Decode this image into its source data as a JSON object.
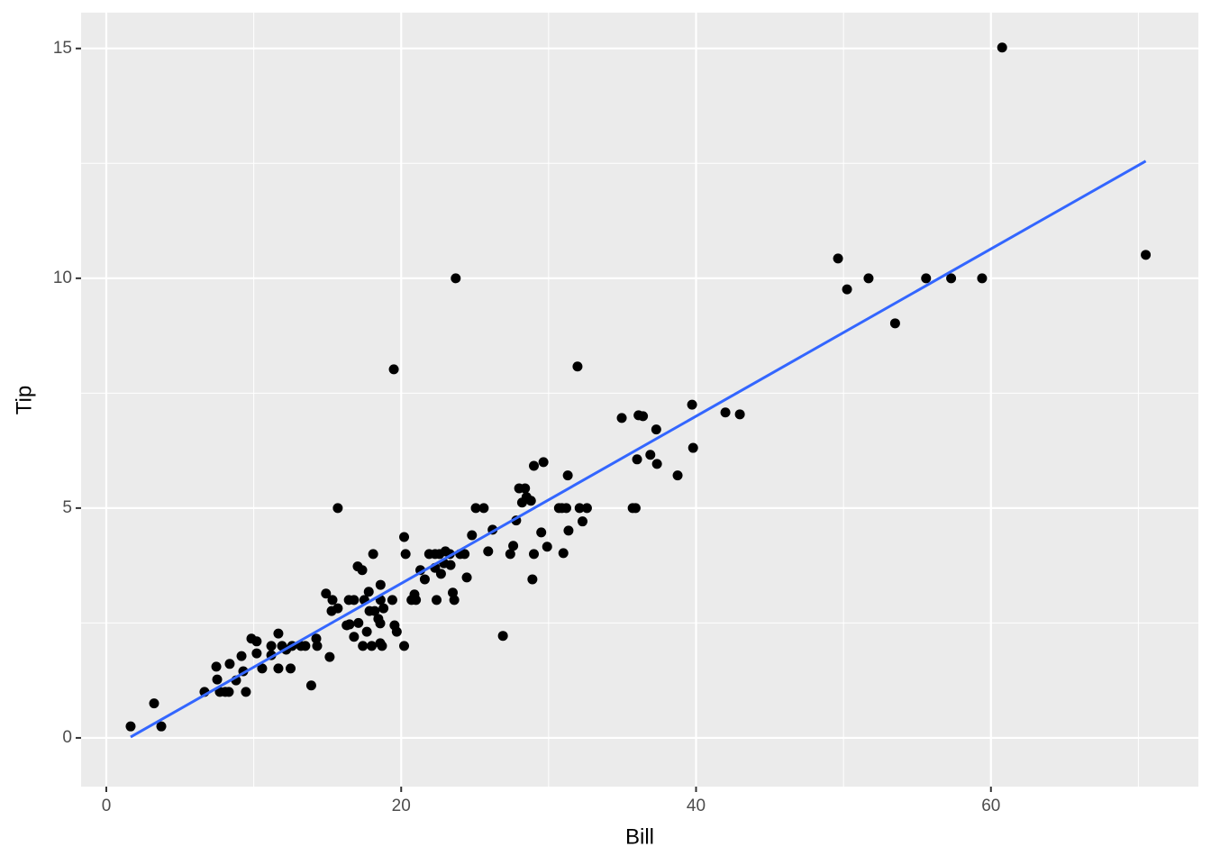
{
  "chart_data": {
    "type": "scatter",
    "x_label": "Bill",
    "y_label": "Tip",
    "x": [
      1.65,
      3.24,
      3.73,
      6.66,
      7.46,
      7.52,
      7.7,
      8.07,
      8.37,
      8.31,
      8.8,
      9.17,
      9.29,
      9.47,
      9.84,
      10.2,
      10.2,
      10.57,
      11.19,
      11.19,
      11.67,
      11.67,
      11.92,
      12.2,
      12.5,
      12.6,
      13.2,
      13.5,
      13.9,
      14.24,
      14.3,
      14.9,
      15.15,
      15.28,
      15.34,
      15.7,
      15.7,
      16.3,
      16.45,
      16.5,
      16.8,
      16.8,
      17.05,
      17.1,
      17.36,
      17.4,
      17.5,
      17.67,
      17.8,
      17.85,
      18.0,
      18.1,
      18.2,
      18.45,
      18.58,
      18.6,
      18.6,
      18.7,
      18.58,
      18.8,
      19.4,
      19.5,
      19.55,
      19.7,
      20.2,
      20.2,
      20.3,
      20.7,
      20.9,
      21.0,
      21.3,
      21.6,
      21.9,
      22.3,
      22.3,
      22.4,
      22.6,
      22.7,
      22.9,
      23.0,
      23.3,
      23.35,
      23.5,
      23.6,
      23.7,
      24.0,
      24.3,
      24.45,
      24.8,
      25.06,
      25.6,
      25.9,
      26.2,
      26.9,
      27.4,
      27.6,
      27.8,
      28.0,
      28.2,
      28.4,
      28.5,
      28.8,
      28.9,
      29.0,
      29.0,
      29.5,
      29.65,
      29.9,
      30.7,
      30.9,
      31.0,
      31.2,
      31.3,
      31.35,
      31.96,
      32.1,
      32.3,
      32.6,
      34.96,
      35.7,
      35.9,
      36.0,
      36.1,
      36.4,
      36.9,
      37.3,
      37.35,
      38.75,
      39.73,
      39.8,
      41.99,
      42.97,
      49.63,
      50.24,
      51.7,
      53.5,
      55.6,
      57.3,
      59.4,
      60.76,
      70.5
    ],
    "values": [
      0.25,
      0.75,
      0.25,
      1.0,
      1.55,
      1.27,
      1.0,
      1.0,
      1.61,
      1.0,
      1.25,
      1.78,
      1.45,
      1.0,
      2.16,
      2.1,
      1.84,
      1.51,
      2.0,
      1.8,
      2.27,
      1.51,
      2.0,
      1.92,
      1.51,
      2.0,
      2.0,
      2.0,
      1.14,
      2.16,
      2.0,
      3.14,
      1.76,
      2.76,
      3.0,
      5.0,
      2.82,
      2.45,
      3.0,
      2.47,
      3.0,
      2.2,
      3.73,
      2.5,
      3.65,
      2.0,
      3.0,
      2.31,
      3.18,
      2.76,
      2.0,
      4.0,
      2.76,
      2.59,
      2.06,
      3.33,
      3.0,
      2.0,
      2.49,
      2.82,
      3.0,
      8.02,
      2.45,
      2.31,
      2.0,
      4.37,
      4.0,
      3.0,
      3.12,
      3.0,
      3.65,
      3.45,
      4.0,
      4.0,
      3.7,
      3.0,
      4.0,
      3.57,
      3.8,
      4.06,
      4.0,
      3.76,
      3.16,
      3.0,
      10.0,
      4.0,
      4.0,
      3.49,
      4.41,
      5.0,
      5.0,
      4.06,
      4.53,
      2.22,
      4.0,
      4.18,
      4.73,
      5.43,
      5.12,
      5.43,
      5.24,
      5.16,
      3.45,
      5.92,
      4.0,
      4.47,
      6.0,
      4.16,
      5.0,
      5.0,
      4.02,
      5.0,
      5.71,
      4.51,
      8.08,
      5.0,
      4.71,
      5.0,
      6.96,
      5.0,
      5.0,
      6.06,
      7.02,
      7.0,
      6.16,
      6.71,
      5.96,
      5.71,
      7.25,
      6.31,
      7.08,
      7.04,
      10.43,
      9.76,
      10.0,
      9.02,
      10.0,
      10.0,
      10.0,
      15.02,
      10.51
    ],
    "color": "#000000",
    "trend": {
      "x": [
        1.65,
        70.5
      ],
      "values": [
        0.02,
        12.55
      ],
      "color": "#3366ff"
    },
    "xlim": [
      -1.71,
      74.07
    ],
    "xticks": [
      0,
      20,
      40,
      60
    ],
    "x_minor_ticks": [
      10,
      30,
      50,
      70
    ],
    "ylim": [
      -1.06,
      15.78
    ],
    "yticks": [
      0,
      5,
      10,
      15
    ],
    "y_minor_ticks": [
      2.5,
      7.5,
      12.5
    ],
    "grid": true
  }
}
